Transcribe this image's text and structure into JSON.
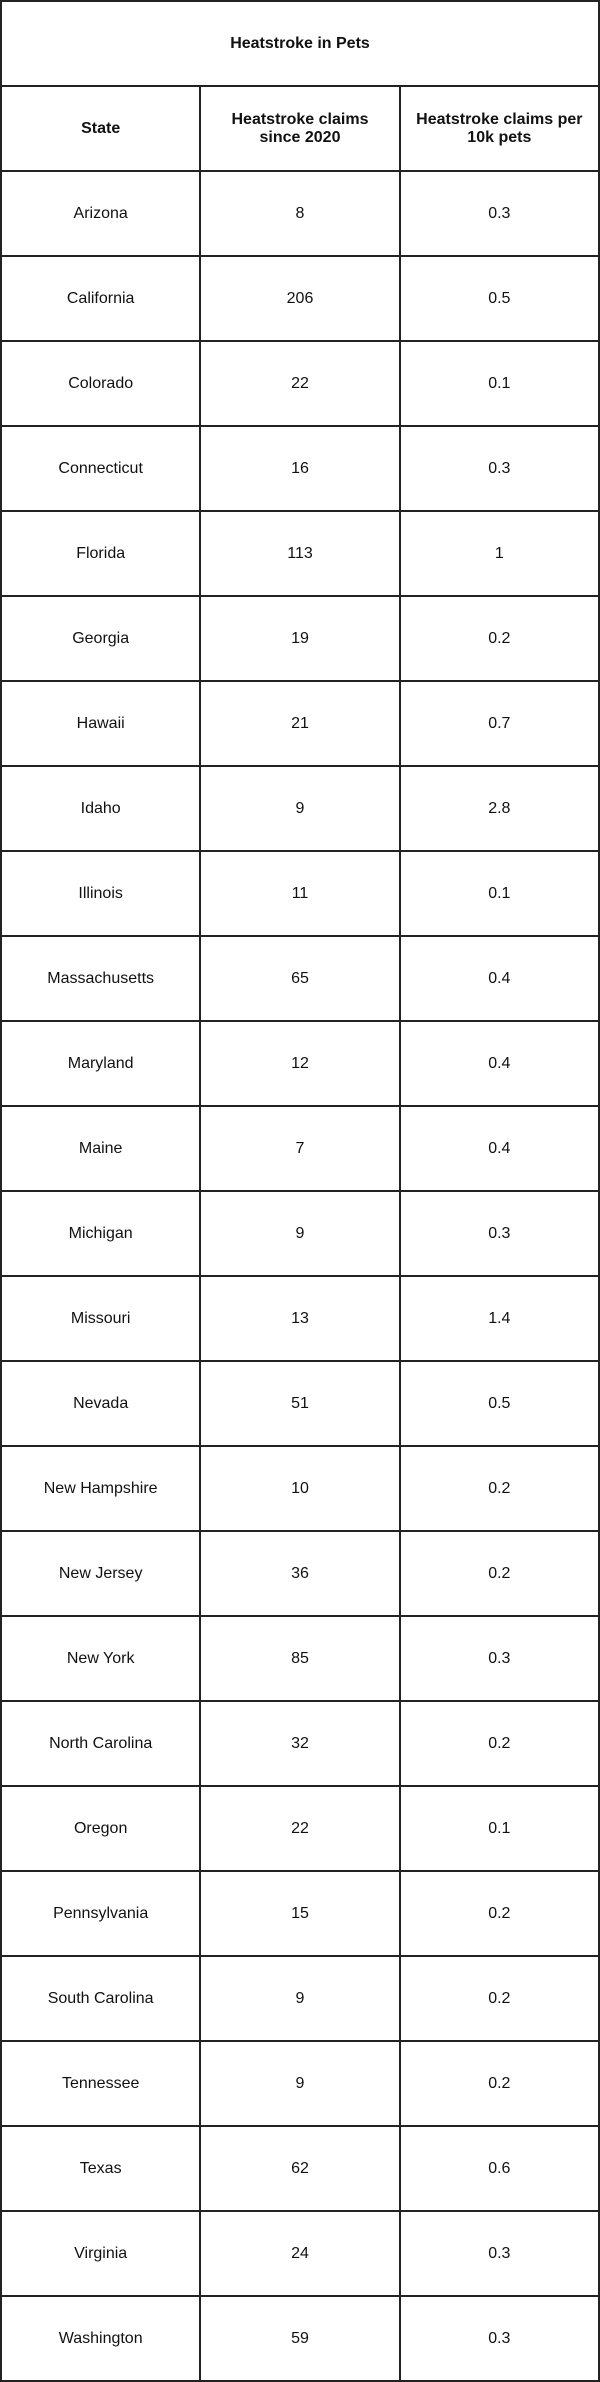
{
  "table": {
    "title": "Heatstroke in Pets",
    "headers": [
      "State",
      "Heatstroke claims since 2020",
      "Heatstroke claims per 10k pets"
    ],
    "rows": [
      [
        "Arizona",
        "8",
        "0.3"
      ],
      [
        "California",
        "206",
        "0.5"
      ],
      [
        "Colorado",
        "22",
        "0.1"
      ],
      [
        "Connecticut",
        "16",
        "0.3"
      ],
      [
        "Florida",
        "113",
        "1"
      ],
      [
        "Georgia",
        "19",
        "0.2"
      ],
      [
        "Hawaii",
        "21",
        "0.7"
      ],
      [
        "Idaho",
        "9",
        "2.8"
      ],
      [
        "Illinois",
        "11",
        "0.1"
      ],
      [
        "Massachusetts",
        "65",
        "0.4"
      ],
      [
        "Maryland",
        "12",
        "0.4"
      ],
      [
        "Maine",
        "7",
        "0.4"
      ],
      [
        "Michigan",
        "9",
        "0.3"
      ],
      [
        "Missouri",
        "13",
        "1.4"
      ],
      [
        "Nevada",
        "51",
        "0.5"
      ],
      [
        "New Hampshire",
        "10",
        "0.2"
      ],
      [
        "New Jersey",
        "36",
        "0.2"
      ],
      [
        "New York",
        "85",
        "0.3"
      ],
      [
        "North Carolina",
        "32",
        "0.2"
      ],
      [
        "Oregon",
        "22",
        "0.1"
      ],
      [
        "Pennsylvania",
        "15",
        "0.2"
      ],
      [
        "South Carolina",
        "9",
        "0.2"
      ],
      [
        "Tennessee",
        "9",
        "0.2"
      ],
      [
        "Texas",
        "62",
        "0.6"
      ],
      [
        "Virginia",
        "24",
        "0.3"
      ],
      [
        "Washington",
        "59",
        "0.3"
      ]
    ]
  }
}
